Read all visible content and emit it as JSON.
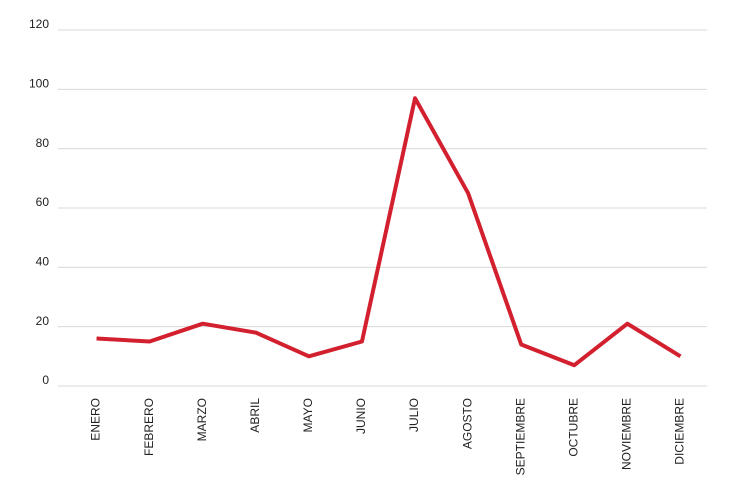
{
  "chart_data": {
    "type": "line",
    "categories": [
      "ENERO",
      "FEBRERO",
      "MARZO",
      "ABRIL",
      "MAYO",
      "JUNIO",
      "JULIO",
      "AGOSTO",
      "SEPTIEMBRE",
      "OCTUBRE",
      "NOVIEMBRE",
      "DICIEMBRE"
    ],
    "values": [
      16,
      15,
      21,
      18,
      10,
      15,
      97,
      65,
      14,
      7,
      21,
      10
    ],
    "color": "#d3202f",
    "ylim": [
      0,
      120
    ],
    "yticks": [
      0,
      20,
      40,
      60,
      80,
      100,
      120
    ],
    "grid": true
  }
}
